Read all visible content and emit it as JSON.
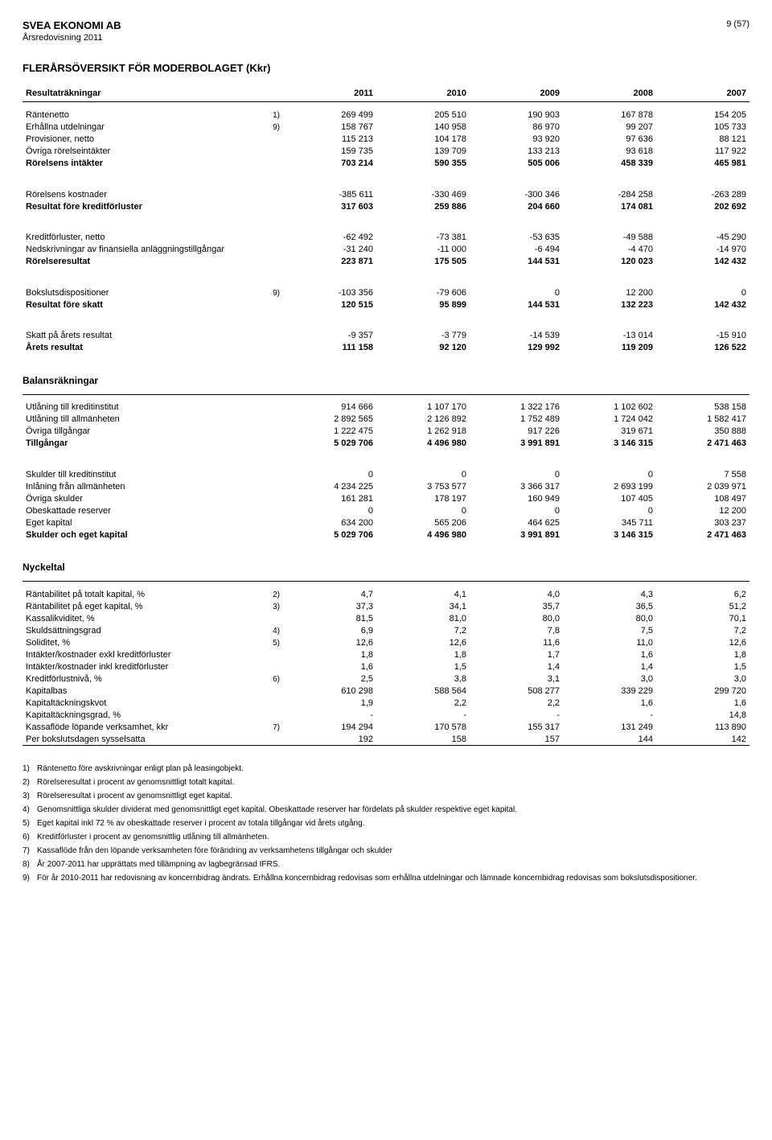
{
  "header": {
    "company": "SVEA EKONOMI AB",
    "sub": "Årsredovisning 2011",
    "page": "9 (57)"
  },
  "title": "FLERÅRSÖVERSIKT FÖR MODERBOLAGET (Kkr)",
  "years": [
    "2011",
    "2010",
    "2009",
    "2008",
    "2007"
  ],
  "pnl": {
    "heading": "Resultaträkningar",
    "rows": [
      {
        "label": "Räntenetto",
        "note": "1)",
        "v": [
          "269 499",
          "205 510",
          "190 903",
          "167 878",
          "154 205"
        ]
      },
      {
        "label": "Erhållna utdelningar",
        "note": "9)",
        "v": [
          "158 767",
          "140 958",
          "86 970",
          "99 207",
          "105 733"
        ]
      },
      {
        "label": "Provisioner, netto",
        "note": "",
        "v": [
          "115 213",
          "104 178",
          "93 920",
          "97 636",
          "88 121"
        ]
      },
      {
        "label": "Övriga rörelseintäkter",
        "note": "",
        "v": [
          "159 735",
          "139 709",
          "133 213",
          "93 618",
          "117 922"
        ]
      },
      {
        "label": "Rörelsens intäkter",
        "note": "",
        "bold": true,
        "v": [
          "703 214",
          "590 355",
          "505 006",
          "458 339",
          "465 981"
        ]
      },
      {
        "spacer": true
      },
      {
        "label": "Rörelsens kostnader",
        "note": "",
        "v": [
          "-385 611",
          "-330 469",
          "-300 346",
          "-284 258",
          "-263 289"
        ]
      },
      {
        "label": "Resultat före kreditförluster",
        "note": "",
        "bold": true,
        "v": [
          "317 603",
          "259 886",
          "204 660",
          "174 081",
          "202 692"
        ]
      },
      {
        "spacer": true
      },
      {
        "label": "Kreditförluster, netto",
        "note": "",
        "v": [
          "-62 492",
          "-73 381",
          "-53 635",
          "-49 588",
          "-45 290"
        ]
      },
      {
        "label": "Nedskrivningar av finansiella anläggningstillgångar",
        "note": "",
        "v": [
          "-31 240",
          "-11 000",
          "-6 494",
          "-4 470",
          "-14 970"
        ]
      },
      {
        "label": "Rörelseresultat",
        "note": "",
        "bold": true,
        "v": [
          "223 871",
          "175 505",
          "144 531",
          "120 023",
          "142 432"
        ]
      },
      {
        "spacer": true
      },
      {
        "label": "Bokslutsdispositioner",
        "note": "9)",
        "v": [
          "-103 356",
          "-79 606",
          "0",
          "12 200",
          "0"
        ]
      },
      {
        "label": "Resultat före skatt",
        "note": "",
        "bold": true,
        "v": [
          "120 515",
          "95 899",
          "144 531",
          "132 223",
          "142 432"
        ]
      },
      {
        "spacer": true
      },
      {
        "label": "Skatt på årets resultat",
        "note": "",
        "v": [
          "-9 357",
          "-3 779",
          "-14 539",
          "-13 014",
          "-15 910"
        ]
      },
      {
        "label": "Årets resultat",
        "note": "",
        "bold": true,
        "v": [
          "111 158",
          "92 120",
          "129 992",
          "119 209",
          "126 522"
        ]
      }
    ]
  },
  "bs": {
    "heading": "Balansräkningar",
    "rows": [
      {
        "label": "Utlåning till kreditinstitut",
        "note": "",
        "v": [
          "914 666",
          "1 107 170",
          "1 322 176",
          "1 102 602",
          "538 158"
        ]
      },
      {
        "label": "Utlåning till allmänheten",
        "note": "",
        "v": [
          "2 892 565",
          "2 126 892",
          "1 752 489",
          "1 724 042",
          "1 582 417"
        ]
      },
      {
        "label": "Övriga tillgångar",
        "note": "",
        "v": [
          "1 222 475",
          "1 262 918",
          "917 226",
          "319 671",
          "350 888"
        ]
      },
      {
        "label": "Tillgångar",
        "note": "",
        "bold": true,
        "v": [
          "5 029 706",
          "4 496 980",
          "3 991 891",
          "3 146 315",
          "2 471 463"
        ]
      },
      {
        "spacer": true
      },
      {
        "label": "Skulder till kreditinstitut",
        "note": "",
        "v": [
          "0",
          "0",
          "0",
          "0",
          "7 558"
        ]
      },
      {
        "label": "Inlåning från allmänheten",
        "note": "",
        "v": [
          "4 234 225",
          "3 753 577",
          "3 366 317",
          "2 693 199",
          "2 039 971"
        ]
      },
      {
        "label": "Övriga skulder",
        "note": "",
        "v": [
          "161 281",
          "178 197",
          "160 949",
          "107 405",
          "108 497"
        ]
      },
      {
        "label": "Obeskattade reserver",
        "note": "",
        "v": [
          "0",
          "0",
          "0",
          "0",
          "12 200"
        ]
      },
      {
        "label": "Eget kapital",
        "note": "",
        "v": [
          "634 200",
          "565 206",
          "464 625",
          "345 711",
          "303 237"
        ]
      },
      {
        "label": "Skulder och eget kapital",
        "note": "",
        "bold": true,
        "v": [
          "5 029 706",
          "4 496 980",
          "3 991 891",
          "3 146 315",
          "2 471 463"
        ]
      }
    ]
  },
  "kpi": {
    "heading": "Nyckeltal",
    "rows": [
      {
        "label": "Räntabilitet på totalt kapital, %",
        "note": "2)",
        "v": [
          "4,7",
          "4,1",
          "4,0",
          "4,3",
          "6,2"
        ]
      },
      {
        "label": "Räntabilitet på eget kapital, %",
        "note": "3)",
        "v": [
          "37,3",
          "34,1",
          "35,7",
          "36,5",
          "51,2"
        ]
      },
      {
        "label": "Kassalikviditet, %",
        "note": "",
        "v": [
          "81,5",
          "81,0",
          "80,0",
          "80,0",
          "70,1"
        ]
      },
      {
        "label": "Skuldsättningsgrad",
        "note": "4)",
        "v": [
          "6,9",
          "7,2",
          "7,8",
          "7,5",
          "7,2"
        ]
      },
      {
        "label": "Soliditet, %",
        "note": "5)",
        "v": [
          "12,6",
          "12,6",
          "11,6",
          "11,0",
          "12,6"
        ]
      },
      {
        "label": "Intäkter/kostnader exkl kreditförluster",
        "note": "",
        "v": [
          "1,8",
          "1,8",
          "1,7",
          "1,6",
          "1,8"
        ]
      },
      {
        "label": "Intäkter/kostnader inkl kreditförluster",
        "note": "",
        "v": [
          "1,6",
          "1,5",
          "1,4",
          "1,4",
          "1,5"
        ]
      },
      {
        "label": "Kreditförlustnivå, %",
        "note": "6)",
        "v": [
          "2,5",
          "3,8",
          "3,1",
          "3,0",
          "3,0"
        ]
      },
      {
        "label": "Kapitalbas",
        "note": "",
        "v": [
          "610 298",
          "588 564",
          "508 277",
          "339 229",
          "299 720"
        ]
      },
      {
        "label": "Kapitaltäckningskvot",
        "note": "",
        "v": [
          "1,9",
          "2,2",
          "2,2",
          "1,6",
          "1,6"
        ]
      },
      {
        "label": "Kapitaltäckningsgrad, %",
        "note": "",
        "v": [
          "-",
          "-",
          "-",
          "-",
          "14,8"
        ]
      },
      {
        "label": "Kassaflöde löpande verksamhet, kkr",
        "note": "7)",
        "v": [
          "194 294",
          "170 578",
          "155 317",
          "131 249",
          "113 890"
        ]
      },
      {
        "label": "Per bokslutsdagen sysselsatta",
        "note": "",
        "underline": true,
        "v": [
          "192",
          "158",
          "157",
          "144",
          "142"
        ]
      }
    ]
  },
  "footnotes": [
    {
      "n": "1)",
      "t": "Räntenetto före avskrivningar enligt plan på leasingobjekt."
    },
    {
      "n": "2)",
      "t": "Rörelseresultat i procent av genomsnittligt totalt kapital."
    },
    {
      "n": "3)",
      "t": "Rörelseresultat i procent av genomsnittligt eget kapital."
    },
    {
      "n": "4)",
      "t": "Genomsnittliga skulder dividerat med genomsnittligt eget kapital. Obeskattade reserver har fördelats på skulder respektive eget kapital."
    },
    {
      "n": "5)",
      "t": "Eget kapital inkl 72 % av obeskattade reserver i procent av totala tillgångar vid årets utgång."
    },
    {
      "n": "6)",
      "t": "Kreditförluster i procent av genomsnittlig utlåning till allmänheten."
    },
    {
      "n": "7)",
      "t": "Kassaflöde från den löpande verksamheten före förändring av verksamhetens tillgångar och skulder"
    },
    {
      "n": "8)",
      "t": "År 2007-2011 har upprättats med tillämpning av lagbegränsad IFRS."
    },
    {
      "n": "9)",
      "t": "För år 2010-2011 har redovisning av koncernbidrag ändrats. Erhållna koncernbidrag redovisas som erhållna utdelningar och lämnade koncernbidrag redovisas som bokslutsdispositioner."
    }
  ]
}
